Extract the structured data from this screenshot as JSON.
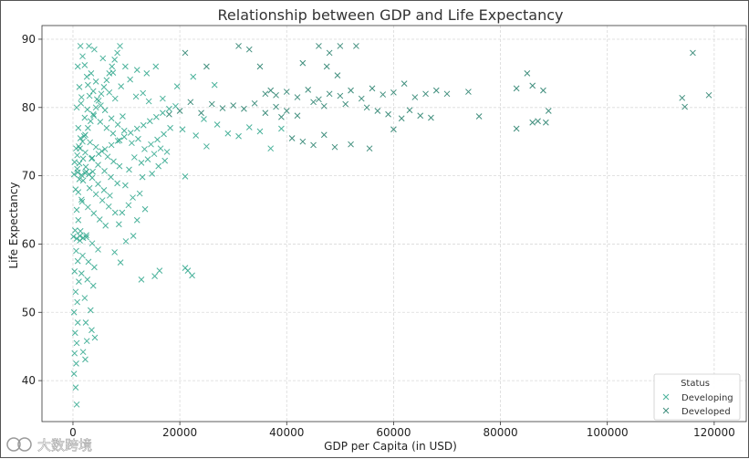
{
  "watermark": "大数跨境",
  "chart_data": {
    "type": "scatter",
    "title": "Relationship between GDP and Life Expectancy",
    "xlabel": "GDP per Capita (in USD)",
    "ylabel": "Life Expectancy",
    "xlim": [
      -5800,
      126000
    ],
    "ylim": [
      34.0,
      92.0
    ],
    "xticks": [
      0,
      20000,
      40000,
      60000,
      80000,
      100000,
      120000
    ],
    "xtick_labels": [
      "0",
      "20000",
      "40000",
      "60000",
      "80000",
      "100000",
      "120000"
    ],
    "yticks": [
      40,
      50,
      60,
      70,
      80,
      90
    ],
    "ytick_labels": [
      "40",
      "50",
      "60",
      "70",
      "80",
      "90"
    ],
    "grid": true,
    "marker": "x",
    "legend": {
      "title": "Status",
      "position": "lower-right",
      "entries": [
        {
          "name": "Developing",
          "color": "#2aa58a"
        },
        {
          "name": "Developed",
          "color": "#1e7a66"
        }
      ]
    },
    "series": [
      {
        "name": "Developed",
        "color": "#1e7a66",
        "points": [
          [
            31000,
            89
          ],
          [
            33000,
            88.5
          ],
          [
            46000,
            89
          ],
          [
            48000,
            88
          ],
          [
            50000,
            89
          ],
          [
            53000,
            89
          ],
          [
            36000,
            82
          ],
          [
            37000,
            82.5
          ],
          [
            38000,
            81.8
          ],
          [
            40000,
            82.3
          ],
          [
            42000,
            81.5
          ],
          [
            44000,
            82.6
          ],
          [
            46000,
            81.2
          ],
          [
            48000,
            82
          ],
          [
            50000,
            81.7
          ],
          [
            52000,
            82.5
          ],
          [
            54000,
            81.3
          ],
          [
            56000,
            82.8
          ],
          [
            58000,
            81.9
          ],
          [
            60000,
            82.2
          ],
          [
            62000,
            83.5
          ],
          [
            64000,
            81.5
          ],
          [
            66000,
            82
          ],
          [
            68000,
            82.5
          ],
          [
            70000,
            82
          ],
          [
            74000,
            82.3
          ],
          [
            83000,
            82.8
          ],
          [
            85000,
            85
          ],
          [
            86000,
            83.2
          ],
          [
            88000,
            82.5
          ],
          [
            45000,
            80.8
          ],
          [
            47000,
            80.2
          ],
          [
            51000,
            80.5
          ],
          [
            55000,
            80
          ],
          [
            57000,
            79.5
          ],
          [
            59000,
            79
          ],
          [
            63000,
            79.6
          ],
          [
            65000,
            78.8
          ],
          [
            67000,
            78.5
          ],
          [
            76000,
            78.7
          ],
          [
            83000,
            76.9
          ],
          [
            86000,
            77.8
          ],
          [
            87000,
            78
          ],
          [
            89000,
            79.5
          ],
          [
            88500,
            77.8
          ],
          [
            114000,
            81.4
          ],
          [
            114500,
            80.1
          ],
          [
            119000,
            81.8
          ],
          [
            116000,
            88
          ],
          [
            40000,
            79.5
          ],
          [
            42000,
            78.8
          ],
          [
            41000,
            75.5
          ],
          [
            43000,
            75
          ],
          [
            45000,
            74.5
          ],
          [
            47000,
            76
          ],
          [
            49000,
            74.2
          ],
          [
            52000,
            74.6
          ],
          [
            55500,
            74
          ],
          [
            60000,
            76.8
          ],
          [
            61500,
            78.4
          ],
          [
            30000,
            80.3
          ],
          [
            32000,
            79.8
          ],
          [
            34000,
            80.6
          ],
          [
            36000,
            79.2
          ],
          [
            38000,
            80.1
          ],
          [
            39000,
            78.6
          ],
          [
            28000,
            79.9
          ],
          [
            26000,
            80.5
          ],
          [
            24000,
            79.2
          ],
          [
            22000,
            80.8
          ],
          [
            20000,
            79.5
          ],
          [
            18000,
            79
          ],
          [
            25000,
            86
          ],
          [
            21000,
            88
          ],
          [
            35000,
            86
          ],
          [
            43000,
            86.5
          ],
          [
            47500,
            86
          ],
          [
            49500,
            84.7
          ]
        ]
      },
      {
        "name": "Developing",
        "color": "#2aa58a",
        "points": [
          [
            500,
            39
          ],
          [
            200,
            41
          ],
          [
            600,
            42.5
          ],
          [
            300,
            44
          ],
          [
            700,
            45.5
          ],
          [
            400,
            47
          ],
          [
            900,
            48.5
          ],
          [
            200,
            50
          ],
          [
            800,
            51.5
          ],
          [
            500,
            53
          ],
          [
            1100,
            54.5
          ],
          [
            300,
            56
          ],
          [
            900,
            57.5
          ],
          [
            600,
            59
          ],
          [
            1300,
            60.5
          ],
          [
            400,
            62
          ],
          [
            1000,
            63.5
          ],
          [
            700,
            65
          ],
          [
            1600,
            66.5
          ],
          [
            500,
            68
          ],
          [
            1200,
            69.5
          ],
          [
            800,
            71
          ],
          [
            1900,
            72.5
          ],
          [
            600,
            74
          ],
          [
            1400,
            75.5
          ],
          [
            1000,
            77
          ],
          [
            2200,
            78.5
          ],
          [
            700,
            80
          ],
          [
            1600,
            81.5
          ],
          [
            1200,
            83
          ],
          [
            2600,
            84.5
          ],
          [
            900,
            86
          ],
          [
            1800,
            87.5
          ],
          [
            1400,
            89
          ],
          [
            3000,
            89
          ],
          [
            4000,
            88.5
          ],
          [
            2200,
            86.2
          ],
          [
            3400,
            85
          ],
          [
            2800,
            83.3
          ],
          [
            3800,
            82.4
          ],
          [
            4500,
            81.2
          ],
          [
            5200,
            80.3
          ],
          [
            6000,
            79.6
          ],
          [
            7200,
            78.4
          ],
          [
            8400,
            77.5
          ],
          [
            9600,
            76.6
          ],
          [
            2100,
            75.8
          ],
          [
            3200,
            74.9
          ],
          [
            4300,
            74.2
          ],
          [
            5400,
            73.6
          ],
          [
            6500,
            72.8
          ],
          [
            7600,
            72.1
          ],
          [
            8700,
            71.4
          ],
          [
            2500,
            70.6
          ],
          [
            3600,
            69.7
          ],
          [
            4700,
            68.8
          ],
          [
            5800,
            67.9
          ],
          [
            6900,
            67.1
          ],
          [
            1700,
            66.2
          ],
          [
            2800,
            65.4
          ],
          [
            3900,
            64.5
          ],
          [
            5000,
            63.6
          ],
          [
            6100,
            62.7
          ],
          [
            1400,
            61.9
          ],
          [
            2500,
            61
          ],
          [
            3600,
            60.1
          ],
          [
            4700,
            59.2
          ],
          [
            1800,
            58.3
          ],
          [
            2900,
            57.4
          ],
          [
            4000,
            56.6
          ],
          [
            1600,
            55.7
          ],
          [
            2700,
            54.8
          ],
          [
            3800,
            53.9
          ],
          [
            2200,
            52.1
          ],
          [
            3300,
            50.3
          ],
          [
            2400,
            48.5
          ],
          [
            3500,
            47.4
          ],
          [
            4100,
            46.3
          ],
          [
            2600,
            45.8
          ],
          [
            1900,
            44.2
          ],
          [
            2300,
            43.1
          ],
          [
            700,
            36.5
          ],
          [
            1200,
            71.8
          ],
          [
            2400,
            71.3
          ],
          [
            3600,
            72.6
          ],
          [
            4800,
            73.2
          ],
          [
            6000,
            73.9
          ],
          [
            7200,
            74.5
          ],
          [
            8400,
            75.1
          ],
          [
            9600,
            75.7
          ],
          [
            10800,
            76.3
          ],
          [
            12000,
            76.9
          ],
          [
            13200,
            77.4
          ],
          [
            14400,
            78
          ],
          [
            15600,
            78.6
          ],
          [
            16800,
            79.2
          ],
          [
            18000,
            79.8
          ],
          [
            19200,
            80.2
          ],
          [
            11000,
            74.8
          ],
          [
            12200,
            75.4
          ],
          [
            13400,
            73.9
          ],
          [
            14600,
            74.6
          ],
          [
            15800,
            75.3
          ],
          [
            17000,
            76.1
          ],
          [
            18200,
            77
          ],
          [
            11500,
            72.7
          ],
          [
            12800,
            71.9
          ],
          [
            14000,
            72.4
          ],
          [
            15200,
            73.2
          ],
          [
            16400,
            74
          ],
          [
            17600,
            73.5
          ],
          [
            10500,
            70.9
          ],
          [
            13000,
            69.8
          ],
          [
            14800,
            70.3
          ],
          [
            16000,
            71.4
          ],
          [
            17200,
            72.2
          ],
          [
            9800,
            68.6
          ],
          [
            11200,
            66.8
          ],
          [
            12500,
            67.4
          ],
          [
            9200,
            64.6
          ],
          [
            10400,
            65.7
          ],
          [
            8600,
            62.9
          ],
          [
            9900,
            60.4
          ],
          [
            7800,
            58.8
          ],
          [
            8900,
            57.3
          ],
          [
            12800,
            54.8
          ],
          [
            15300,
            55.3
          ],
          [
            16200,
            56.1
          ],
          [
            21000,
            56.5
          ],
          [
            21500,
            56.1
          ],
          [
            22300,
            55.4
          ],
          [
            21000,
            69.9
          ],
          [
            13500,
            65.1
          ],
          [
            12000,
            63.5
          ],
          [
            11300,
            61.2
          ],
          [
            13800,
            85
          ],
          [
            15500,
            86
          ],
          [
            12000,
            85.5
          ],
          [
            16800,
            81.3
          ],
          [
            9000,
            83.1
          ],
          [
            9800,
            86
          ],
          [
            10700,
            84.1
          ],
          [
            7500,
            85.1
          ],
          [
            5600,
            87.2
          ],
          [
            6800,
            82.2
          ],
          [
            7900,
            81.3
          ],
          [
            4300,
            83.8
          ],
          [
            3100,
            81.7
          ],
          [
            1500,
            80.6
          ],
          [
            2700,
            79.7
          ],
          [
            3900,
            78.8
          ],
          [
            5100,
            77.9
          ],
          [
            6300,
            77
          ],
          [
            7500,
            76.2
          ],
          [
            8700,
            75.2
          ],
          [
            1100,
            74.3
          ],
          [
            2300,
            73.4
          ],
          [
            3500,
            72.5
          ],
          [
            4700,
            71.6
          ],
          [
            5900,
            70.7
          ],
          [
            7100,
            69.8
          ],
          [
            8300,
            68.9
          ],
          [
            1000,
            67.6
          ],
          [
            1900,
            69.3
          ],
          [
            3100,
            68.2
          ],
          [
            4300,
            67.3
          ],
          [
            5500,
            66.4
          ],
          [
            6700,
            65.5
          ],
          [
            7900,
            64.6
          ],
          [
            300,
            72
          ],
          [
            800,
            73
          ],
          [
            1300,
            74
          ],
          [
            1800,
            75
          ],
          [
            2300,
            76
          ],
          [
            2800,
            77
          ],
          [
            3300,
            78
          ],
          [
            3800,
            79
          ],
          [
            4300,
            80
          ],
          [
            4800,
            81
          ],
          [
            5300,
            82
          ],
          [
            5800,
            83
          ],
          [
            6300,
            84
          ],
          [
            6800,
            85
          ],
          [
            7300,
            86
          ],
          [
            7800,
            87
          ],
          [
            8300,
            88
          ],
          [
            8800,
            89
          ],
          [
            9300,
            78.7
          ],
          [
            200,
            70.2
          ],
          [
            900,
            70.5
          ],
          [
            1600,
            70.1
          ],
          [
            2300,
            70.4
          ],
          [
            3000,
            70.2
          ],
          [
            3700,
            70.6
          ],
          [
            100,
            61.1
          ],
          [
            700,
            60.8
          ],
          [
            1300,
            61.2
          ],
          [
            1900,
            60.9
          ],
          [
            2500,
            61.3
          ],
          [
            27000,
            77.5
          ],
          [
            29000,
            76.2
          ],
          [
            31000,
            75.8
          ],
          [
            33000,
            77.1
          ],
          [
            35000,
            76.5
          ],
          [
            37000,
            74
          ],
          [
            39000,
            76.9
          ],
          [
            25000,
            74.3
          ],
          [
            23000,
            75.9
          ],
          [
            20500,
            76.8
          ],
          [
            24500,
            78.3
          ],
          [
            26500,
            83.3
          ],
          [
            22500,
            84.5
          ],
          [
            19500,
            83.1
          ],
          [
            11800,
            81.6
          ],
          [
            13100,
            82.1
          ],
          [
            14200,
            80.9
          ]
        ]
      }
    ]
  }
}
